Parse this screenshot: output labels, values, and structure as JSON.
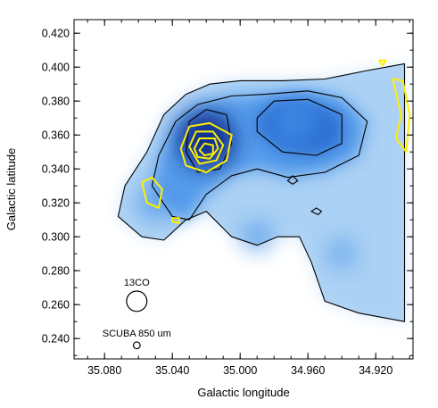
{
  "chart_data": {
    "type": "heatmap",
    "title": "",
    "xlabel": "Galactic longitude",
    "ylabel": "Galactic latitude",
    "x_axis_reversed": true,
    "xlim": [
      35.098,
      34.898
    ],
    "ylim": [
      0.228,
      0.428
    ],
    "xticks": [
      35.08,
      35.04,
      35.0,
      34.96,
      34.92
    ],
    "xtick_labels": [
      "35.080",
      "35.040",
      "35.000",
      "34.960",
      "34.920"
    ],
    "yticks": [
      0.24,
      0.26,
      0.28,
      0.3,
      0.32,
      0.34,
      0.36,
      0.38,
      0.4,
      0.42
    ],
    "ytick_labels": [
      "0.240",
      "0.260",
      "0.280",
      "0.300",
      "0.320",
      "0.340",
      "0.360",
      "0.380",
      "0.400",
      "0.420"
    ],
    "grid": false,
    "colormap": "white-to-blue",
    "colors": {
      "background_emission": "#d7e9fa",
      "mid_emission": "#3f8ee8",
      "peak_emission": "#0a2a8c",
      "contour_13co": "#000000",
      "contour_scuba": "#ffee00"
    },
    "emission_peaks": [
      {
        "l": 35.02,
        "b": 0.357,
        "relative_intensity": 1.0
      },
      {
        "l": 34.968,
        "b": 0.368,
        "relative_intensity": 0.7
      },
      {
        "l": 35.05,
        "b": 0.32,
        "relative_intensity": 0.45
      },
      {
        "l": 34.99,
        "b": 0.3,
        "relative_intensity": 0.35
      },
      {
        "l": 34.94,
        "b": 0.29,
        "relative_intensity": 0.3
      }
    ],
    "series": [
      {
        "name": "13CO",
        "color": "#000000",
        "contours": [
          [
            [
              35.072,
              0.312
            ],
            [
              35.068,
              0.33
            ],
            [
              35.055,
              0.35
            ],
            [
              35.045,
              0.372
            ],
            [
              35.032,
              0.384
            ],
            [
              35.018,
              0.39
            ],
            [
              35.0,
              0.392
            ],
            [
              34.975,
              0.392
            ],
            [
              34.95,
              0.393
            ],
            [
              34.925,
              0.398
            ],
            [
              34.903,
              0.402
            ],
            [
              34.903,
              0.25
            ],
            [
              34.93,
              0.255
            ],
            [
              34.95,
              0.262
            ],
            [
              34.958,
              0.285
            ],
            [
              34.965,
              0.3
            ],
            [
              34.978,
              0.3
            ],
            [
              34.99,
              0.295
            ],
            [
              35.005,
              0.3
            ],
            [
              35.02,
              0.315
            ],
            [
              35.032,
              0.31
            ],
            [
              35.045,
              0.298
            ],
            [
              35.058,
              0.3
            ],
            [
              35.072,
              0.312
            ]
          ],
          [
            [
              35.052,
              0.33
            ],
            [
              35.048,
              0.348
            ],
            [
              35.038,
              0.368
            ],
            [
              35.025,
              0.378
            ],
            [
              35.005,
              0.383
            ],
            [
              34.985,
              0.384
            ],
            [
              34.96,
              0.386
            ],
            [
              34.94,
              0.382
            ],
            [
              34.925,
              0.368
            ],
            [
              34.93,
              0.348
            ],
            [
              34.95,
              0.338
            ],
            [
              34.972,
              0.335
            ],
            [
              34.99,
              0.34
            ],
            [
              35.005,
              0.336
            ],
            [
              35.02,
              0.325
            ],
            [
              35.03,
              0.31
            ],
            [
              35.04,
              0.312
            ],
            [
              35.052,
              0.33
            ]
          ],
          [
            [
              35.032,
              0.35
            ],
            [
              35.03,
              0.368
            ],
            [
              35.02,
              0.375
            ],
            [
              35.008,
              0.372
            ],
            [
              35.005,
              0.355
            ],
            [
              35.012,
              0.34
            ],
            [
              35.025,
              0.338
            ],
            [
              35.032,
              0.35
            ]
          ],
          [
            [
              34.99,
              0.37
            ],
            [
              34.98,
              0.38
            ],
            [
              34.96,
              0.381
            ],
            [
              34.94,
              0.372
            ],
            [
              34.94,
              0.355
            ],
            [
              34.955,
              0.348
            ],
            [
              34.975,
              0.35
            ],
            [
              34.99,
              0.362
            ],
            [
              34.99,
              0.37
            ]
          ],
          [
            [
              34.972,
              0.333
            ],
            [
              34.969,
              0.331
            ],
            [
              34.966,
              0.333
            ],
            [
              34.969,
              0.336
            ],
            [
              34.972,
              0.333
            ]
          ],
          [
            [
              34.958,
              0.315
            ],
            [
              34.954,
              0.313
            ],
            [
              34.952,
              0.315
            ],
            [
              34.955,
              0.317
            ],
            [
              34.958,
              0.315
            ]
          ]
        ]
      },
      {
        "name": "SCUBA 850 um",
        "color": "#ffee00",
        "contours": [
          [
            [
              35.035,
              0.352
            ],
            [
              35.03,
              0.365
            ],
            [
              35.018,
              0.367
            ],
            [
              35.005,
              0.36
            ],
            [
              35.008,
              0.345
            ],
            [
              35.02,
              0.338
            ],
            [
              35.032,
              0.342
            ],
            [
              35.035,
              0.352
            ]
          ],
          [
            [
              35.03,
              0.353
            ],
            [
              35.026,
              0.362
            ],
            [
              35.016,
              0.362
            ],
            [
              35.01,
              0.354
            ],
            [
              35.014,
              0.345
            ],
            [
              35.024,
              0.343
            ],
            [
              35.03,
              0.353
            ]
          ],
          [
            [
              35.027,
              0.352
            ],
            [
              35.024,
              0.358
            ],
            [
              35.015,
              0.358
            ],
            [
              35.013,
              0.352
            ],
            [
              35.018,
              0.346
            ],
            [
              35.025,
              0.347
            ],
            [
              35.027,
              0.352
            ]
          ],
          [
            [
              35.024,
              0.351
            ],
            [
              35.021,
              0.355
            ],
            [
              35.016,
              0.354
            ],
            [
              35.016,
              0.349
            ],
            [
              35.021,
              0.348
            ],
            [
              35.024,
              0.351
            ]
          ],
          [
            [
              35.058,
              0.332
            ],
            [
              35.055,
              0.32
            ],
            [
              35.048,
              0.317
            ],
            [
              35.046,
              0.328
            ],
            [
              35.052,
              0.335
            ],
            [
              35.058,
              0.332
            ]
          ],
          [
            [
              35.04,
              0.309
            ],
            [
              35.036,
              0.308
            ],
            [
              35.036,
              0.311
            ],
            [
              35.04,
              0.311
            ],
            [
              35.04,
              0.309
            ]
          ],
          [
            [
              34.91,
              0.393
            ],
            [
              34.905,
              0.372
            ],
            [
              34.908,
              0.358
            ],
            [
              34.902,
              0.35
            ],
            [
              34.9,
              0.372
            ],
            [
              34.904,
              0.392
            ],
            [
              34.91,
              0.393
            ]
          ],
          [
            [
              34.918,
              0.404
            ],
            [
              34.916,
              0.401
            ],
            [
              34.914,
              0.404
            ],
            [
              34.918,
              0.404
            ]
          ]
        ]
      }
    ],
    "beams": [
      {
        "label": "13CO",
        "l": 35.061,
        "b": 0.262,
        "radius_deg": 0.006
      },
      {
        "label": "SCUBA 850 um",
        "l": 35.061,
        "b": 0.236,
        "radius_deg": 0.002
      }
    ]
  }
}
